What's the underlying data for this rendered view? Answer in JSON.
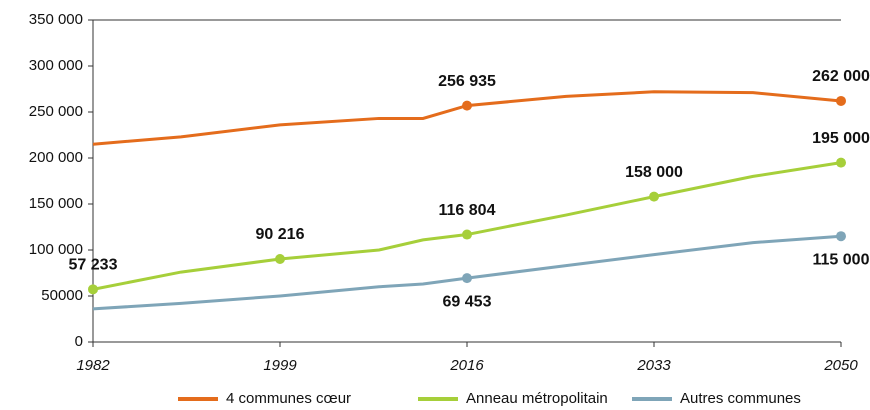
{
  "chart_data": {
    "type": "line",
    "x": [
      1982,
      1990,
      1999,
      2008,
      2012,
      2016,
      2025,
      2033,
      2042,
      2050
    ],
    "xlim": [
      1982,
      2050
    ],
    "xticks": [
      1982,
      1999,
      2016,
      2033,
      2050
    ],
    "ylim": [
      0,
      350000
    ],
    "yticks": [
      0,
      {
        "value": 50000,
        "label": "50000"
      },
      {
        "value": 100000,
        "label": "100 000"
      },
      {
        "value": 150000,
        "label": "150 000"
      },
      {
        "value": 200000,
        "label": "200 000"
      },
      {
        "value": 250000,
        "label": "250 000"
      },
      {
        "value": 300000,
        "label": "300 000"
      },
      {
        "value": 350000,
        "label": "350 000"
      }
    ],
    "grid": false,
    "legend": "bottom",
    "series": [
      {
        "name": "4 communes cœur",
        "color": "#e46c1c",
        "values": [
          215000,
          223000,
          236000,
          243000,
          243000,
          256935,
          267000,
          272000,
          271000,
          262000
        ],
        "value_labels": [
          null,
          null,
          null,
          null,
          null,
          "256 935",
          null,
          null,
          null,
          "262 000"
        ]
      },
      {
        "name": "Anneau métropolitain",
        "color": "#a6cf3a",
        "values": [
          57233,
          76000,
          90216,
          100000,
          111000,
          116804,
          138000,
          158000,
          180000,
          195000
        ],
        "value_labels": [
          "57 233",
          null,
          "90 216",
          null,
          null,
          "116 804",
          null,
          "158 000",
          null,
          "195 000"
        ]
      },
      {
        "name": "Autres communes",
        "color": "#7fa5b8",
        "values": [
          36000,
          42000,
          50000,
          60000,
          63000,
          69453,
          83000,
          95000,
          108000,
          115000
        ],
        "value_labels": [
          null,
          null,
          null,
          null,
          null,
          "69 453",
          null,
          null,
          null,
          "115 000"
        ]
      }
    ]
  }
}
